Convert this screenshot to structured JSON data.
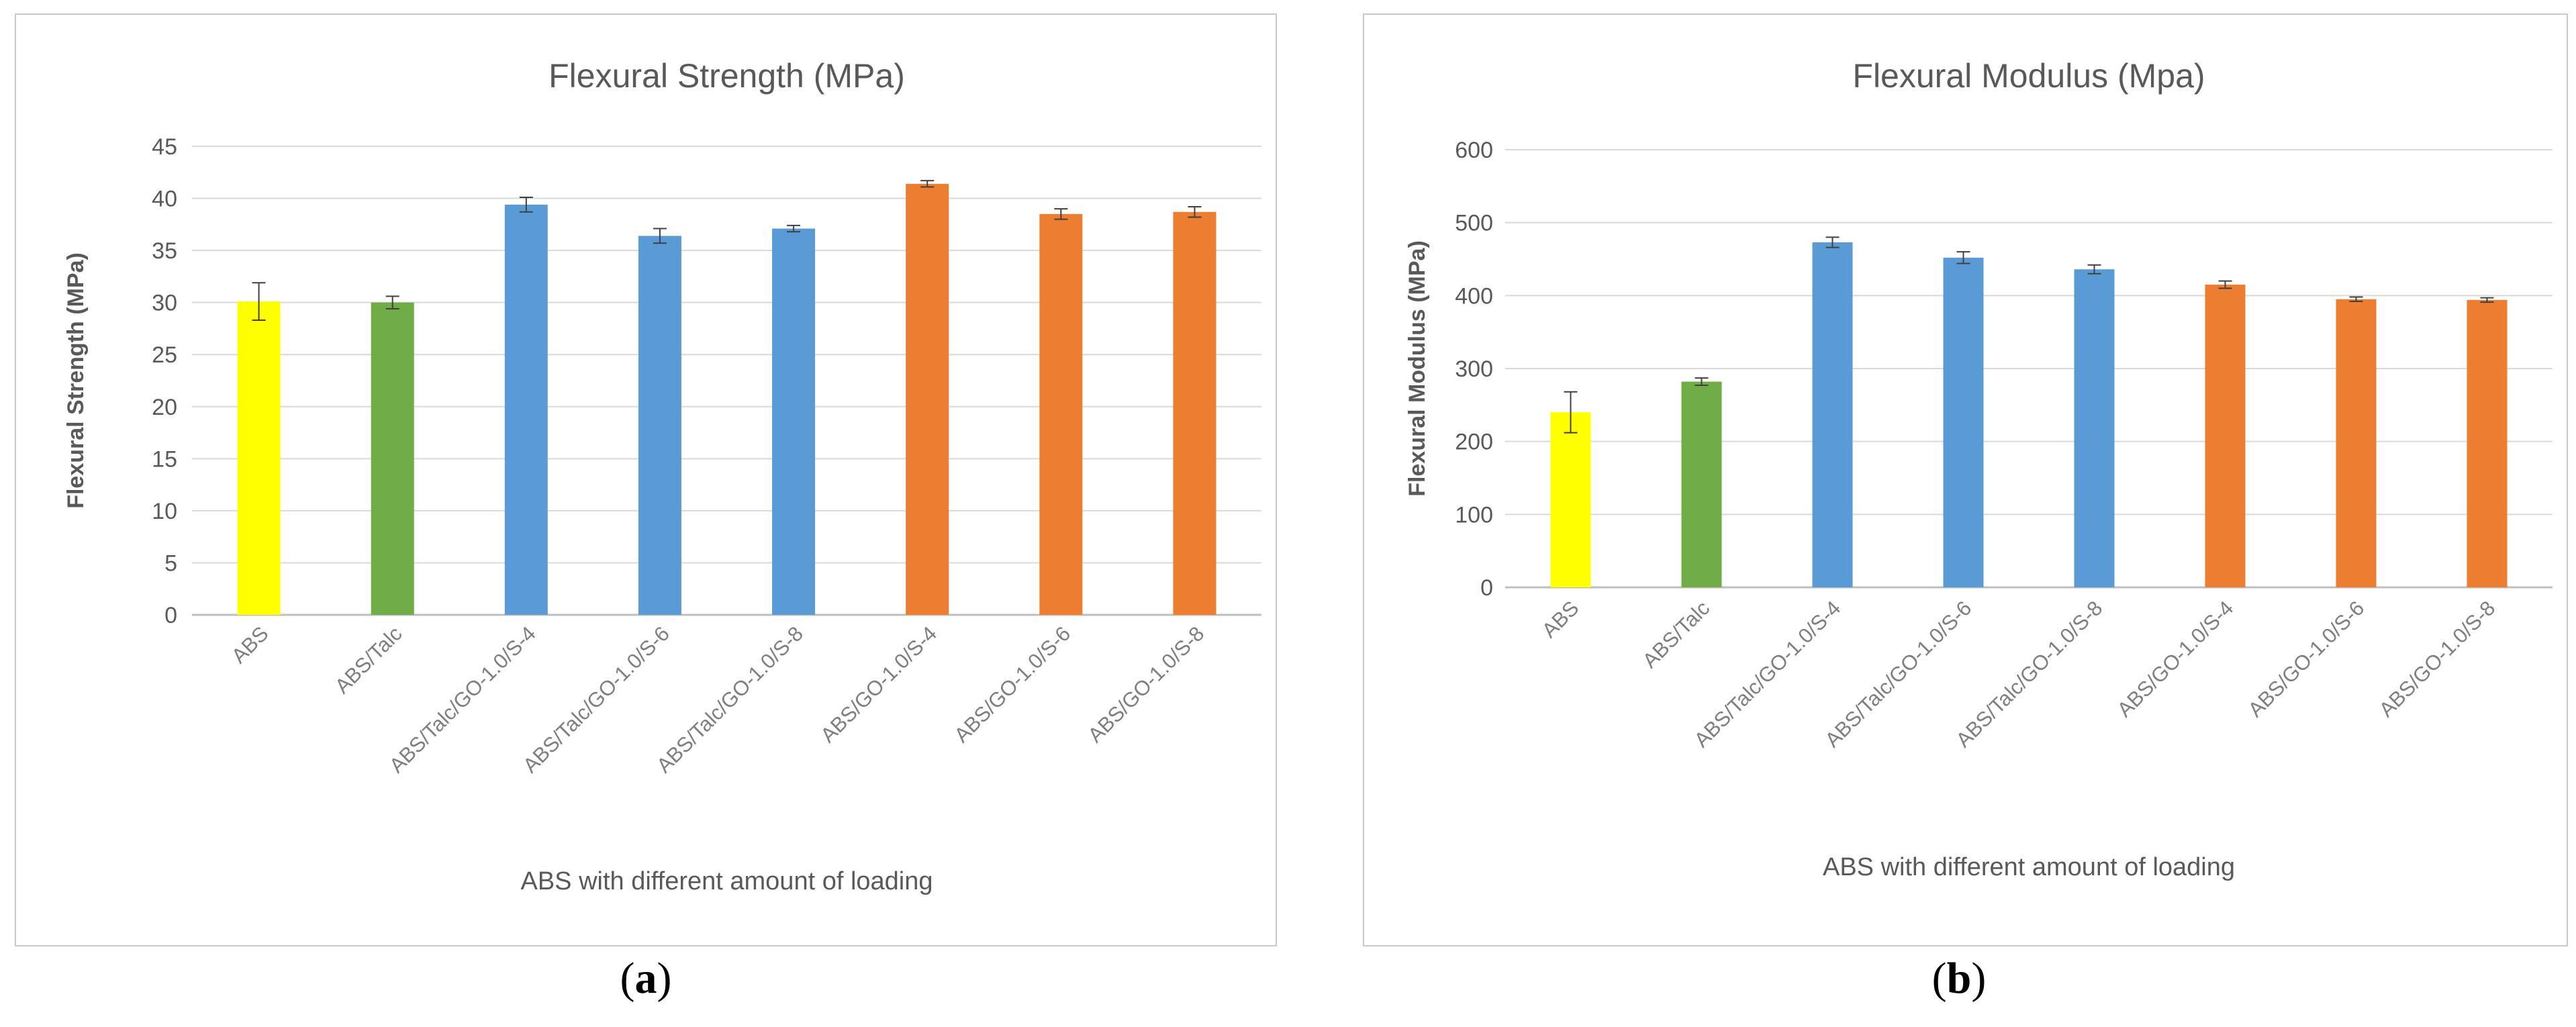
{
  "panels": [
    {
      "letter": "a"
    },
    {
      "letter": "b"
    }
  ],
  "chart_data": [
    {
      "type": "bar",
      "title": "Flexural Strength (MPa)",
      "xlabel": "ABS with different amount of loading",
      "ylabel": "Flexural Strength (MPa)",
      "ylim": [
        0,
        45
      ],
      "yticks": [
        0,
        5,
        10,
        15,
        20,
        25,
        30,
        35,
        40,
        45
      ],
      "grid": true,
      "categories": [
        "ABS",
        "ABS/Talc",
        "ABS/Talc/GO-1.0/S-4",
        "ABS/Talc/GO-1.0/S-6",
        "ABS/Talc/GO-1.0/S-8",
        "ABS/GO-1.0/S-4",
        "ABS/GO-1.0/S-6",
        "ABS/GO-1.0/S-8"
      ],
      "values": [
        30.1,
        30.0,
        39.4,
        36.4,
        37.1,
        41.4,
        38.5,
        38.7
      ],
      "errors": [
        1.8,
        0.6,
        0.7,
        0.7,
        0.3,
        0.3,
        0.5,
        0.5
      ],
      "colors": [
        "#FFFF00",
        "#70AD47",
        "#5B9BD5",
        "#5B9BD5",
        "#5B9BD5",
        "#ED7D31",
        "#ED7D31",
        "#ED7D31"
      ]
    },
    {
      "type": "bar",
      "title": "Flexural Modulus (Mpa)",
      "xlabel": "ABS with different amount of loading",
      "ylabel": "Flexural Modulus (MPa)",
      "ylim": [
        0,
        600
      ],
      "yticks": [
        0,
        100,
        200,
        300,
        400,
        500,
        600
      ],
      "grid": true,
      "categories": [
        "ABS",
        "ABS/Talc",
        "ABS/Talc/GO-1.0/S-4",
        "ABS/Talc/GO-1.0/S-6",
        "ABS/Talc/GO-1.0/S-8",
        "ABS/GO-1.0/S-4",
        "ABS/GO-1.0/S-6",
        "ABS/GO-1.0/S-8"
      ],
      "values": [
        240,
        282,
        473,
        452,
        436,
        415,
        395,
        394
      ],
      "errors": [
        28,
        5,
        7,
        8,
        6,
        5,
        3,
        3
      ],
      "colors": [
        "#FFFF00",
        "#70AD47",
        "#5B9BD5",
        "#5B9BD5",
        "#5B9BD5",
        "#ED7D31",
        "#ED7D31",
        "#ED7D31"
      ]
    }
  ]
}
